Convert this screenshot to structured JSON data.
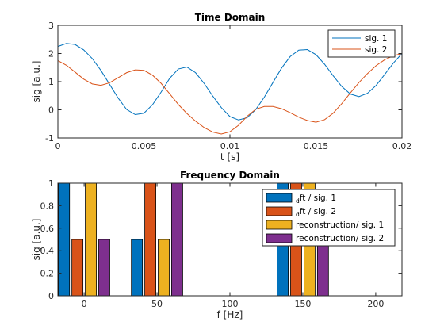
{
  "chart_data": [
    {
      "type": "line",
      "title": "Time Domain",
      "xlabel": "t [s]",
      "ylabel": "sig [a.u.]",
      "xlim": [
        0,
        0.02
      ],
      "ylim": [
        -1,
        3
      ],
      "xticks": [
        0,
        0.005,
        0.01,
        0.015,
        0.02
      ],
      "xtick_labels": [
        "0",
        "0.005",
        "0.01",
        "0.015",
        "0.02"
      ],
      "yticks": [
        -1,
        0,
        1,
        2,
        3
      ],
      "ytick_labels": [
        "-1",
        "0",
        "1",
        "2",
        "3"
      ],
      "grid": false,
      "legend_position": "top-right",
      "series": [
        {
          "name": "sig. 1",
          "color": "#0072BD",
          "x": [
            0,
            0.0005,
            0.001,
            0.0015,
            0.002,
            0.0025,
            0.003,
            0.0035,
            0.004,
            0.0045,
            0.005,
            0.0055,
            0.006,
            0.0065,
            0.007,
            0.0075,
            0.008,
            0.0085,
            0.009,
            0.0095,
            0.01,
            0.0105,
            0.011,
            0.0115,
            0.012,
            0.0125,
            0.013,
            0.0135,
            0.014,
            0.0145,
            0.015,
            0.0155,
            0.016,
            0.0165,
            0.017,
            0.0175,
            0.018,
            0.0185,
            0.019,
            0.0195,
            0.02
          ],
          "y": [
            2.25,
            2.36,
            2.32,
            2.13,
            1.82,
            1.4,
            0.91,
            0.42,
            0.01,
            -0.17,
            -0.12,
            0.18,
            0.63,
            1.12,
            1.45,
            1.52,
            1.32,
            0.94,
            0.49,
            0.08,
            -0.24,
            -0.36,
            -0.28,
            0.01,
            0.45,
            0.97,
            1.48,
            1.89,
            2.12,
            2.14,
            1.96,
            1.62,
            1.21,
            0.83,
            0.56,
            0.47,
            0.59,
            0.87,
            1.26,
            1.66,
            2.0
          ]
        },
        {
          "name": "sig. 2",
          "color": "#D95319",
          "x": [
            0,
            0.0005,
            0.001,
            0.0015,
            0.002,
            0.0025,
            0.003,
            0.0035,
            0.004,
            0.0045,
            0.005,
            0.0055,
            0.006,
            0.0065,
            0.007,
            0.0075,
            0.008,
            0.0085,
            0.009,
            0.0095,
            0.01,
            0.0105,
            0.011,
            0.0115,
            0.012,
            0.0125,
            0.013,
            0.0135,
            0.014,
            0.0145,
            0.015,
            0.0155,
            0.016,
            0.0165,
            0.017,
            0.0175,
            0.018,
            0.0185,
            0.019,
            0.0195,
            0.02
          ],
          "y": [
            1.75,
            1.58,
            1.34,
            1.09,
            0.92,
            0.87,
            0.96,
            1.14,
            1.32,
            1.42,
            1.4,
            1.23,
            0.94,
            0.57,
            0.19,
            -0.13,
            -0.4,
            -0.63,
            -0.79,
            -0.86,
            -0.78,
            -0.55,
            -0.23,
            0.02,
            0.12,
            0.12,
            0.04,
            -0.1,
            -0.26,
            -0.38,
            -0.44,
            -0.35,
            -0.12,
            0.22,
            0.6,
            0.97,
            1.29,
            1.57,
            1.78,
            1.92,
            2.0
          ]
        }
      ]
    },
    {
      "type": "bar",
      "title": "Frequency Domain",
      "xlabel": "f [Hz]",
      "ylabel": "sig [a.u.]",
      "xlim": [
        -18,
        218
      ],
      "ylim": [
        0,
        1
      ],
      "xticks": [
        0,
        50,
        100,
        150,
        200
      ],
      "xtick_labels": [
        "0",
        "50",
        "100",
        "150",
        "200"
      ],
      "yticks": [
        0,
        0.2,
        0.4,
        0.6,
        0.8,
        1
      ],
      "ytick_labels": [
        "0",
        "0.2",
        "0.4",
        "0.6",
        "0.8",
        "1"
      ],
      "grid": false,
      "legend_position": "top-right",
      "categories": [
        0,
        50,
        150
      ],
      "series": [
        {
          "name_sub": "d",
          "name": "ft / sig. 1",
          "color": "#0072BD",
          "values": [
            1,
            0.5,
            1
          ]
        },
        {
          "name_sub": "d",
          "name": "ft / sig. 2",
          "color": "#D95319",
          "values": [
            0.5,
            1,
            1
          ]
        },
        {
          "name": "reconstruction/ sig. 1",
          "color": "#EDB120",
          "values": [
            1,
            0.5,
            1
          ]
        },
        {
          "name": "reconstruction/ sig. 2",
          "color": "#7E2F8E",
          "values": [
            0.5,
            1,
            0.5
          ]
        }
      ]
    }
  ]
}
